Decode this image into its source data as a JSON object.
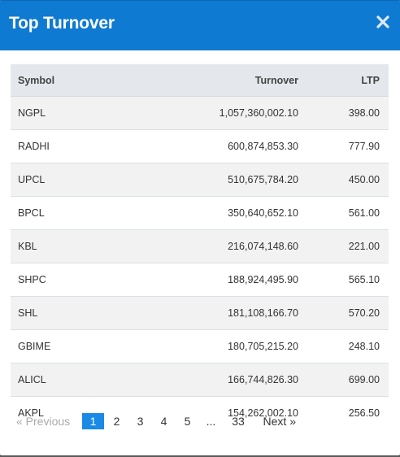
{
  "modal": {
    "title": "Top Turnover"
  },
  "table": {
    "headers": {
      "symbol": "Symbol",
      "turnover": "Turnover",
      "ltp": "LTP"
    },
    "rows": [
      {
        "symbol": "NGPL",
        "turnover": "1,057,360,002.10",
        "ltp": "398.00"
      },
      {
        "symbol": "RADHI",
        "turnover": "600,874,853.30",
        "ltp": "777.90"
      },
      {
        "symbol": "UPCL",
        "turnover": "510,675,784.20",
        "ltp": "450.00"
      },
      {
        "symbol": "BPCL",
        "turnover": "350,640,652.10",
        "ltp": "561.00"
      },
      {
        "symbol": "KBL",
        "turnover": "216,074,148.60",
        "ltp": "221.00"
      },
      {
        "symbol": "SHPC",
        "turnover": "188,924,495.90",
        "ltp": "565.10"
      },
      {
        "symbol": "SHL",
        "turnover": "181,108,166.70",
        "ltp": "570.20"
      },
      {
        "symbol": "GBIME",
        "turnover": "180,705,215.20",
        "ltp": "248.10"
      },
      {
        "symbol": "ALICL",
        "turnover": "166,744,826.30",
        "ltp": "699.00"
      },
      {
        "symbol": "AKPL",
        "turnover": "154,262,002.10",
        "ltp": "256.50"
      }
    ]
  },
  "pagination": {
    "previous": "«  Previous",
    "pages": [
      "1",
      "2",
      "3",
      "4",
      "5"
    ],
    "ellipsis": "...",
    "last": "33",
    "next": "Next  »",
    "current": "1"
  },
  "colors": {
    "header_bg": "#0f7ad1",
    "active_page": "#1a8ae6"
  },
  "icons": {
    "close": "close-icon"
  }
}
